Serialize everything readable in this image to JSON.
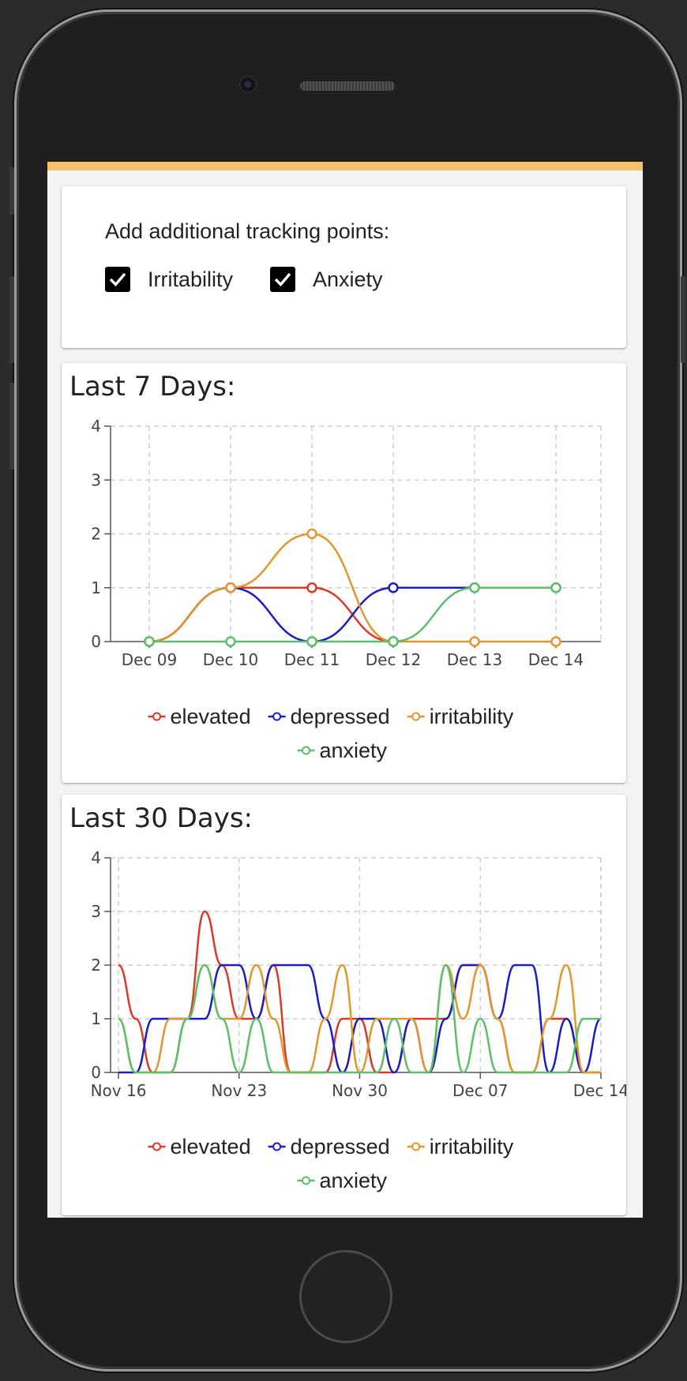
{
  "tracking": {
    "title": "Add additional tracking points:",
    "options": [
      {
        "label": "Irritability",
        "checked": true
      },
      {
        "label": "Anxiety",
        "checked": true
      }
    ]
  },
  "colors": {
    "accent": "#f5c26b",
    "elevated": "#d93a2a",
    "depressed": "#1c1cc4",
    "irritability": "#e3962f",
    "anxiety": "#5cbf6a"
  },
  "chart_data": [
    {
      "type": "line",
      "title": "Last 7 Days:",
      "ylim": [
        0,
        4
      ],
      "y_ticks": [
        "0",
        "1",
        "2",
        "3",
        "4"
      ],
      "categories": [
        "Dec 09",
        "Dec 10",
        "Dec 11",
        "Dec 12",
        "Dec 13",
        "Dec 14"
      ],
      "grid": true,
      "legend_position": "bottom",
      "series": [
        {
          "name": "elevated",
          "values": [
            0,
            1,
            1,
            0,
            null,
            null
          ]
        },
        {
          "name": "depressed",
          "values": [
            0,
            1,
            0,
            1,
            1,
            1
          ]
        },
        {
          "name": "irritability",
          "values": [
            0,
            1,
            2,
            0,
            0,
            0
          ]
        },
        {
          "name": "anxiety",
          "values": [
            0,
            0,
            0,
            0,
            1,
            1
          ]
        }
      ]
    },
    {
      "type": "line",
      "title": "Last 30 Days:",
      "ylim": [
        0,
        4
      ],
      "y_ticks": [
        "0",
        "1",
        "2",
        "3",
        "4"
      ],
      "x_ticks": [
        "Nov 16",
        "Nov 23",
        "Nov 30",
        "Dec 07",
        "Dec 14"
      ],
      "x_start": "Nov 16",
      "x_end": "Dec 14",
      "grid": true,
      "legend_position": "bottom",
      "series": [
        {
          "name": "elevated",
          "values": [
            2,
            1,
            0,
            0,
            1,
            3,
            2,
            1,
            1,
            2,
            0,
            0,
            0,
            1,
            1,
            0,
            0,
            1,
            1,
            1,
            2,
            2,
            1,
            0,
            0,
            1,
            1,
            0,
            0
          ]
        },
        {
          "name": "depressed",
          "values": [
            0,
            0,
            1,
            1,
            1,
            1,
            2,
            2,
            1,
            2,
            2,
            2,
            1,
            0,
            1,
            1,
            0,
            1,
            0,
            1,
            2,
            2,
            1,
            2,
            2,
            0,
            1,
            0,
            1
          ]
        },
        {
          "name": "irritability",
          "values": [
            1,
            0,
            0,
            1,
            1,
            2,
            1,
            1,
            2,
            1,
            0,
            0,
            1,
            2,
            0,
            1,
            1,
            1,
            0,
            2,
            1,
            2,
            1,
            0,
            0,
            1,
            2,
            0,
            0
          ]
        },
        {
          "name": "anxiety",
          "values": [
            1,
            0,
            0,
            0,
            1,
            2,
            1,
            0,
            1,
            0,
            0,
            0,
            0,
            0,
            0,
            0,
            1,
            0,
            0,
            2,
            0,
            1,
            0,
            0,
            0,
            0,
            0,
            1,
            1
          ]
        }
      ]
    }
  ]
}
